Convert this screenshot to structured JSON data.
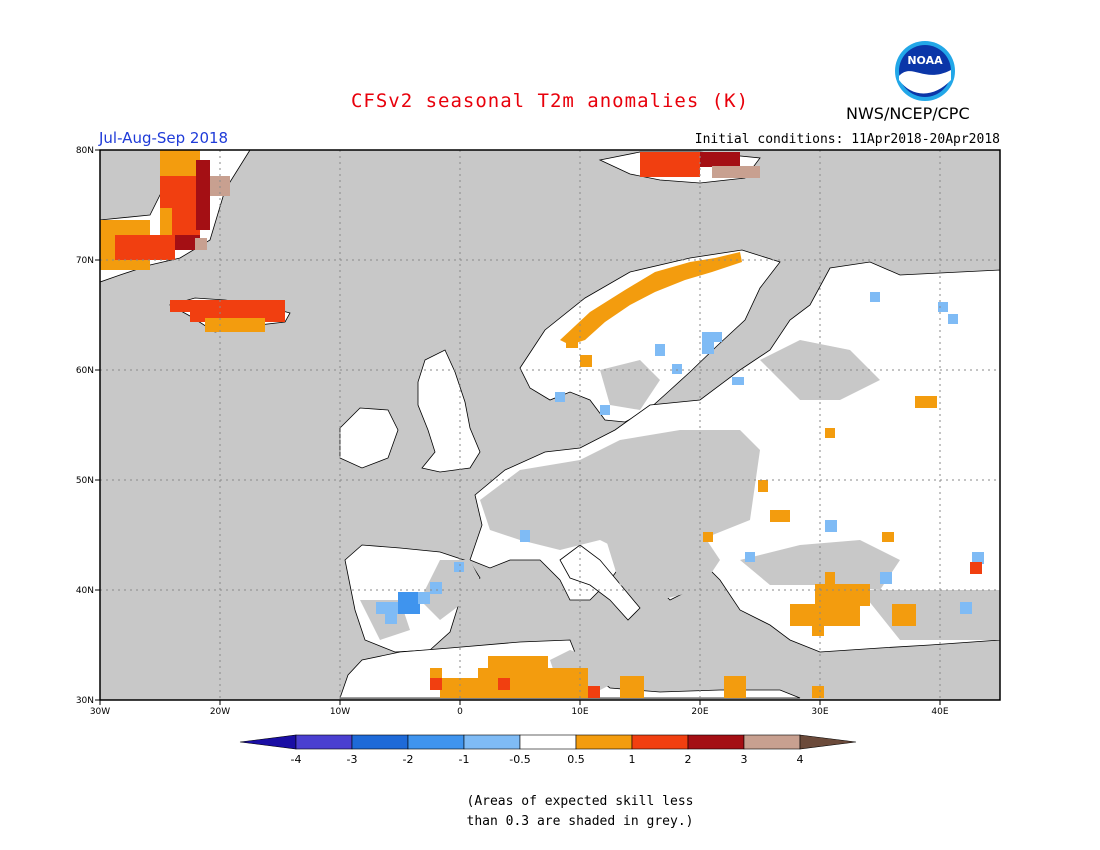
{
  "header": {
    "title": "CFSv2 seasonal T2m anomalies (K)",
    "agency": "NWS/NCEP/CPC",
    "logo_text": "NOAA",
    "season": "Jul-Aug-Sep 2018",
    "initial_conditions": "Initial conditions: 11Apr2018-20Apr2018"
  },
  "map": {
    "lon_ticks": [
      "30W",
      "20W",
      "10W",
      "0",
      "10E",
      "20E",
      "30E",
      "40E"
    ],
    "lat_ticks": [
      "80N",
      "70N",
      "60N",
      "50N",
      "40N",
      "30N"
    ],
    "lon_range": [
      -30,
      45
    ],
    "lat_range": [
      30,
      80
    ],
    "grid": true,
    "colors": {
      "ocean": "#c8c8c8",
      "land": "#ffffff",
      "skill_grey": "#c8c8c8",
      "coast": "#000000"
    }
  },
  "colorbar": {
    "labels": [
      "-4",
      "-3",
      "-2",
      "-1",
      "-0.5",
      "0.5",
      "1",
      "2",
      "3",
      "4"
    ],
    "colors": [
      "#1a0ea4",
      "#4a3fd0",
      "#1e6ad8",
      "#3f94ee",
      "#7fbbf5",
      "#ffffff",
      "#f39c0e",
      "#f13f10",
      "#a40f14",
      "#c8a090",
      "#6b4a3a"
    ]
  },
  "note": {
    "line1": "(Areas of expected skill less",
    "line2": "than 0.3 are shaded in grey.)"
  }
}
